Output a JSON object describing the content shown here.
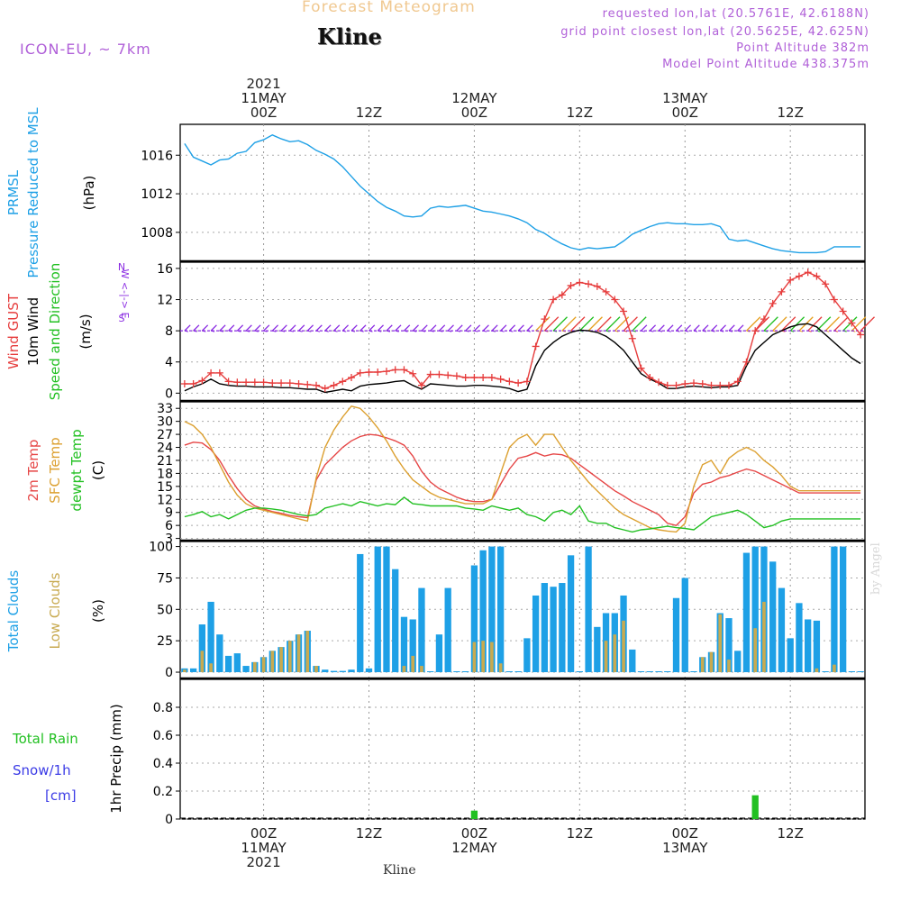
{
  "header": {
    "title": "Forecast Meteogram",
    "station": "Kline",
    "model": "ICON-EU, ~ 7km",
    "requested": "requested lon,lat (20.5761E, 42.6188N)",
    "grid_point": "grid point closest lon,lat (20.5625E, 42.625N)",
    "point_altitude": "Point Altitude 382m",
    "model_altitude": "Model Point Altitude 438.375m"
  },
  "footer": {
    "station": "Kline",
    "signature": "by Angel"
  },
  "colors": {
    "pressure": "#1ea0e6",
    "gust": "#e63c3c",
    "wind": "#000000",
    "dir": "#22c022",
    "sfc_temp": "#dca030",
    "temp": "#e64646",
    "dewpt": "#22c022",
    "total_clouds": "#1ea0e6",
    "low_clouds": "#c8aa50",
    "rain": "#22c022",
    "snow": "#3c3ce6",
    "arrow": "#8a2be2"
  },
  "chart_data": [
    {
      "type": "line",
      "id": "pressure",
      "ylabels": [
        "PRMSL",
        "Pressure Reduced to MSL"
      ],
      "unit": "(hPa)",
      "ylim": [
        1005,
        1019.2
      ],
      "yticks": [
        "1008",
        "1012",
        "1016"
      ],
      "x": [
        -9,
        -8,
        -7,
        -6,
        -5,
        -4,
        -3,
        -2,
        -1,
        0,
        1,
        2,
        3,
        4,
        5,
        6,
        7,
        8,
        9,
        10,
        11,
        12,
        13,
        14,
        15,
        16,
        17,
        18,
        19,
        20,
        21,
        22,
        23,
        24,
        25,
        26,
        27,
        28,
        29,
        30,
        31,
        32,
        33,
        34,
        35,
        36,
        37,
        38,
        39,
        40,
        41,
        42,
        43,
        44,
        45,
        46,
        47,
        48,
        49,
        50,
        51,
        52,
        53,
        54,
        55,
        56,
        57,
        58,
        59,
        60,
        61,
        62,
        63,
        64,
        65,
        66,
        67,
        68
      ],
      "series": [
        {
          "values": [
            1017.2,
            1015.8,
            1015.4,
            1015.0,
            1015.5,
            1015.6,
            1016.2,
            1016.4,
            1017.3,
            1017.6,
            1018.1,
            1017.7,
            1017.4,
            1017.5,
            1017.1,
            1016.5,
            1016.1,
            1015.6,
            1014.8,
            1013.8,
            1012.8,
            1012.0,
            1011.2,
            1010.6,
            1010.2,
            1009.7,
            1009.6,
            1009.7,
            1010.5,
            1010.7,
            1010.6,
            1010.7,
            1010.8,
            1010.5,
            1010.2,
            1010.1,
            1009.9,
            1009.7,
            1009.4,
            1009.0,
            1008.3,
            1007.9,
            1007.3,
            1006.8,
            1006.4,
            1006.2,
            1006.4,
            1006.3,
            1006.4,
            1006.5,
            1007.1,
            1007.8,
            1008.2,
            1008.6,
            1008.9,
            1009.0,
            1008.9,
            1008.9,
            1008.8,
            1008.8,
            1008.9,
            1008.6,
            1007.3,
            1007.1,
            1007.2,
            1006.9,
            1006.6,
            1006.3,
            1006.1,
            1006.0,
            1005.9,
            1005.9,
            1005.9,
            1006.0,
            1006.5,
            1006.5,
            1006.5,
            1006.5
          ]
        }
      ]
    },
    {
      "type": "line",
      "id": "wind",
      "ylabels": [
        "Wind GUST",
        "10m Wind",
        "Speed and Direction"
      ],
      "unit": "(m/s)",
      "compass": [
        "N",
        "W <-|-> E",
        "S"
      ],
      "ylim": [
        -1,
        16.8
      ],
      "yticks": [
        "0",
        "4",
        "8",
        "12",
        "16"
      ],
      "x": [
        -9,
        -8,
        -7,
        -6,
        -5,
        -4,
        -3,
        -2,
        -1,
        0,
        1,
        2,
        3,
        4,
        5,
        6,
        7,
        8,
        9,
        10,
        11,
        12,
        13,
        14,
        15,
        16,
        17,
        18,
        19,
        20,
        21,
        22,
        23,
        24,
        25,
        26,
        27,
        28,
        29,
        30,
        31,
        32,
        33,
        34,
        35,
        36,
        37,
        38,
        39,
        40,
        41,
        42,
        43,
        44,
        45,
        46,
        47,
        48,
        49,
        50,
        51,
        52,
        53,
        54,
        55,
        56,
        57,
        58,
        59,
        60,
        61,
        62,
        63,
        64,
        65,
        66,
        67,
        68
      ],
      "series": [
        {
          "name": "gust",
          "values": [
            1.2,
            1.2,
            1.6,
            2.6,
            2.6,
            1.5,
            1.4,
            1.4,
            1.4,
            1.4,
            1.3,
            1.3,
            1.3,
            1.2,
            1.1,
            1.0,
            0.6,
            1.0,
            1.5,
            2.0,
            2.6,
            2.7,
            2.7,
            2.8,
            3.0,
            3.0,
            2.5,
            1.0,
            2.4,
            2.4,
            2.3,
            2.2,
            2.0,
            2.0,
            2.0,
            2.0,
            1.8,
            1.5,
            1.3,
            1.5,
            6.0,
            9.5,
            12.0,
            12.6,
            13.8,
            14.2,
            14.0,
            13.7,
            13.0,
            12.0,
            10.5,
            7.0,
            3.2,
            2.0,
            1.4,
            1.0,
            1.0,
            1.2,
            1.3,
            1.2,
            1.0,
            1.0,
            1.0,
            1.5,
            4.0,
            8.0,
            9.5,
            11.5,
            13.0,
            14.5,
            15.0,
            15.5,
            15.0,
            14.0,
            12.0,
            10.5,
            9.0,
            7.5
          ]
        },
        {
          "name": "wind",
          "values": [
            0.3,
            0.8,
            1.2,
            1.8,
            1.2,
            1.0,
            0.9,
            0.9,
            0.8,
            0.8,
            0.8,
            0.7,
            0.7,
            0.6,
            0.5,
            0.5,
            0.1,
            0.3,
            0.5,
            0.3,
            0.9,
            1.1,
            1.2,
            1.3,
            1.5,
            1.6,
            1.0,
            0.5,
            1.2,
            1.1,
            1.0,
            0.9,
            0.9,
            1.0,
            1.0,
            0.9,
            0.8,
            0.6,
            0.2,
            0.5,
            3.5,
            5.5,
            6.5,
            7.3,
            7.8,
            8.1,
            8.0,
            7.8,
            7.3,
            6.5,
            5.5,
            4.0,
            2.5,
            1.8,
            1.3,
            0.6,
            0.6,
            0.8,
            0.9,
            0.8,
            0.7,
            0.8,
            0.8,
            1.0,
            3.5,
            5.5,
            6.5,
            7.5,
            8.0,
            8.5,
            8.8,
            8.9,
            8.5,
            7.5,
            6.5,
            5.5,
            4.5,
            3.8
          ]
        }
      ],
      "arrow_level": 8
    },
    {
      "type": "line",
      "id": "temperature",
      "ylabels": [
        "2m Temp",
        "SFC Temp",
        "dewpt Temp"
      ],
      "unit": "(C)",
      "ylim": [
        2.5,
        34.5
      ],
      "yticks": [
        "3",
        "6",
        "9",
        "12",
        "15",
        "18",
        "21",
        "24",
        "27",
        "30",
        "33"
      ],
      "x": [
        -9,
        -8,
        -7,
        -6,
        -5,
        -4,
        -3,
        -2,
        -1,
        0,
        1,
        2,
        3,
        4,
        5,
        6,
        7,
        8,
        9,
        10,
        11,
        12,
        13,
        14,
        15,
        16,
        17,
        18,
        19,
        20,
        21,
        22,
        23,
        24,
        25,
        26,
        27,
        28,
        29,
        30,
        31,
        32,
        33,
        34,
        35,
        36,
        37,
        38,
        39,
        40,
        41,
        42,
        43,
        44,
        45,
        46,
        47,
        48,
        49,
        50,
        51,
        52,
        53,
        54,
        55,
        56,
        57,
        58,
        59,
        60,
        61,
        62,
        63,
        64,
        65,
        66,
        67,
        68
      ],
      "series": [
        {
          "name": "2m Temp",
          "values": [
            24.5,
            25.2,
            25.0,
            23.5,
            21.0,
            17.5,
            14.5,
            12.0,
            10.5,
            9.8,
            9.2,
            8.8,
            8.3,
            8.0,
            7.8,
            16.5,
            20.0,
            22.0,
            24.0,
            25.5,
            26.5,
            27.0,
            26.8,
            26.2,
            25.5,
            24.5,
            22.0,
            18.5,
            16.0,
            14.5,
            13.5,
            12.5,
            11.8,
            11.5,
            11.5,
            12.0,
            15.5,
            19.0,
            21.5,
            22.0,
            22.8,
            22.0,
            22.5,
            22.3,
            21.5,
            20.0,
            18.5,
            17.0,
            15.5,
            14.0,
            12.8,
            11.5,
            10.5,
            9.5,
            8.5,
            6.5,
            6.0,
            8.0,
            13.5,
            15.5,
            16.0,
            17.0,
            17.5,
            18.3,
            19.0,
            18.5,
            17.5,
            16.5,
            15.5,
            14.5,
            13.5,
            13.5,
            13.5,
            13.5,
            13.5,
            13.5,
            13.5,
            13.5
          ]
        },
        {
          "name": "SFC Temp",
          "values": [
            30.0,
            29.0,
            27.0,
            24.0,
            20.0,
            16.0,
            13.0,
            11.0,
            10.0,
            9.5,
            9.0,
            8.5,
            8.0,
            7.5,
            7.0,
            17.0,
            24.0,
            28.0,
            31.0,
            33.5,
            33.0,
            31.0,
            28.5,
            25.5,
            22.0,
            19.0,
            16.5,
            15.0,
            13.5,
            12.5,
            12.0,
            11.5,
            11.0,
            11.0,
            11.0,
            12.0,
            18.0,
            24.0,
            26.0,
            27.0,
            24.5,
            27.0,
            27.0,
            24.0,
            21.0,
            18.5,
            16.0,
            14.0,
            12.0,
            10.0,
            8.5,
            7.5,
            6.5,
            5.5,
            5.0,
            4.7,
            4.5,
            6.5,
            15.0,
            20.0,
            21.0,
            18.0,
            21.5,
            23.0,
            24.0,
            23.0,
            21.0,
            19.5,
            17.5,
            15.0,
            14.0,
            14.0,
            14.0,
            14.0,
            14.0,
            14.0,
            14.0,
            14.0
          ]
        },
        {
          "name": "dewpt Temp",
          "values": [
            8.0,
            8.5,
            9.2,
            8.0,
            8.5,
            7.5,
            8.5,
            9.5,
            10.0,
            10.0,
            9.8,
            9.5,
            9.0,
            8.5,
            8.2,
            8.5,
            10.0,
            10.5,
            11.0,
            10.5,
            11.5,
            11.0,
            10.5,
            11.0,
            10.8,
            12.5,
            11.0,
            10.8,
            10.5,
            10.5,
            10.5,
            10.5,
            10.0,
            9.8,
            9.5,
            10.5,
            10.0,
            9.5,
            10.0,
            8.5,
            8.0,
            7.0,
            9.0,
            9.5,
            8.5,
            10.5,
            7.0,
            6.5,
            6.5,
            5.5,
            5.0,
            4.5,
            5.0,
            5.2,
            5.5,
            5.8,
            5.5,
            5.3,
            5.0,
            6.5,
            8.0,
            8.5,
            9.0,
            9.5,
            8.5,
            7.0,
            5.5,
            6.0,
            7.0,
            7.5,
            7.5,
            7.5,
            7.5,
            7.5,
            7.5,
            7.5,
            7.5,
            7.5
          ]
        }
      ]
    },
    {
      "type": "bar",
      "id": "clouds",
      "ylabels": [
        "Total Clouds",
        "Low Clouds"
      ],
      "unit": "(%)",
      "ylim": [
        -5,
        104
      ],
      "yticks": [
        "0",
        "25",
        "50",
        "75",
        "100"
      ],
      "x": [
        -9,
        -8,
        -7,
        -6,
        -5,
        -4,
        -3,
        -2,
        -1,
        0,
        1,
        2,
        3,
        4,
        5,
        6,
        7,
        8,
        9,
        10,
        11,
        12,
        13,
        14,
        15,
        16,
        17,
        18,
        19,
        20,
        21,
        22,
        23,
        24,
        25,
        26,
        27,
        28,
        29,
        30,
        31,
        32,
        33,
        34,
        35,
        36,
        37,
        38,
        39,
        40,
        41,
        42,
        43,
        44,
        45,
        46,
        47,
        48,
        49,
        50,
        51,
        52,
        53,
        54,
        55,
        56,
        57,
        58,
        59,
        60,
        61,
        62,
        63,
        64,
        65,
        66,
        67,
        68
      ],
      "series": [
        {
          "name": "Total Clouds",
          "values": [
            3,
            3,
            38,
            56,
            30,
            13,
            15,
            5,
            8,
            12,
            17,
            20,
            25,
            30,
            33,
            5,
            2,
            1,
            1,
            2,
            94,
            3,
            100,
            100,
            82,
            44,
            42,
            67,
            0,
            30,
            67,
            0,
            0,
            85,
            97,
            100,
            100,
            0,
            0,
            27,
            61,
            71,
            68,
            71,
            93,
            0,
            100,
            36,
            47,
            47,
            61,
            18,
            0,
            0,
            0,
            0,
            59,
            75,
            0,
            12,
            16,
            47,
            43,
            17,
            95,
            100,
            100,
            88,
            67,
            27,
            55,
            42,
            41,
            0,
            100,
            100,
            0,
            0
          ]
        },
        {
          "name": "Low Clouds",
          "values": [
            2,
            0,
            17,
            7,
            0,
            0,
            0,
            0,
            8,
            12,
            17,
            20,
            25,
            30,
            33,
            5,
            0,
            0,
            0,
            0,
            0,
            0,
            0,
            0,
            0,
            5,
            13,
            5,
            0,
            0,
            0,
            0,
            0,
            24,
            25,
            24,
            7,
            0,
            0,
            0,
            0,
            0,
            0,
            0,
            0,
            0,
            0,
            0,
            25,
            30,
            41,
            0,
            0,
            0,
            0,
            0,
            0,
            0,
            0,
            12,
            16,
            46,
            10,
            0,
            0,
            35,
            56,
            0,
            0,
            0,
            0,
            0,
            3,
            0,
            6,
            0,
            0,
            0
          ]
        }
      ]
    },
    {
      "type": "bar",
      "id": "precip",
      "ylabels": [
        "Total Rain",
        "Snow/1h",
        "[cm]"
      ],
      "unit": "1hr Precip (mm)",
      "ylim": [
        0,
        1.0
      ],
      "yticks": [
        "0",
        "0.2",
        "0.4",
        "0.6",
        "0.8"
      ],
      "bars": [
        {
          "x": 24,
          "value": 0.06
        },
        {
          "x": 56,
          "value": 0.17
        }
      ],
      "series": [
        {
          "name": "Total Rain"
        }
      ]
    }
  ],
  "axis": {
    "top": [
      {
        "x": 0,
        "lines": [
          "2021",
          "11MAY",
          "00Z"
        ]
      },
      {
        "x": 12,
        "lines": [
          "12Z"
        ]
      },
      {
        "x": 24,
        "lines": [
          "12MAY",
          "00Z"
        ]
      },
      {
        "x": 36,
        "lines": [
          "12Z"
        ]
      },
      {
        "x": 48,
        "lines": [
          "13MAY",
          "00Z"
        ]
      },
      {
        "x": 60,
        "lines": [
          "12Z"
        ]
      }
    ],
    "bottom": [
      {
        "x": 0,
        "lines": [
          "00Z",
          "11MAY",
          "2021"
        ]
      },
      {
        "x": 12,
        "lines": [
          "12Z"
        ]
      },
      {
        "x": 24,
        "lines": [
          "00Z",
          "12MAY"
        ]
      },
      {
        "x": 36,
        "lines": [
          "12Z"
        ]
      },
      {
        "x": 48,
        "lines": [
          "00Z",
          "13MAY"
        ]
      },
      {
        "x": 60,
        "lines": [
          "12Z"
        ]
      }
    ]
  }
}
